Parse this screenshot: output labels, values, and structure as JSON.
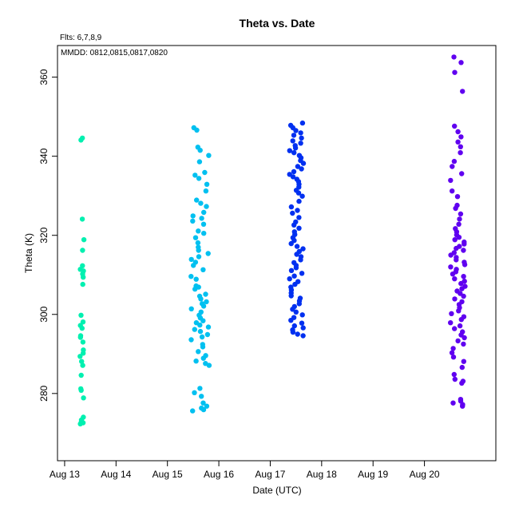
{
  "chart_data": {
    "type": "scatter",
    "title": "Theta  vs. Date",
    "subtitle": "Flts: 6,7,8,9",
    "annotation": "MMDD: 0812,0815,0817,0820",
    "xlabel": "Date (UTC)",
    "ylabel": "Theta (K)",
    "xlim": [
      "Aug 12 20:40",
      "Aug 21 09:20"
    ],
    "ylim": [
      263,
      368
    ],
    "x_ticks": [
      "Aug 13",
      "Aug 14",
      "Aug 15",
      "Aug 16",
      "Aug 17",
      "Aug 18",
      "Aug 19",
      "Aug 20"
    ],
    "y_ticks": [
      280,
      300,
      320,
      340,
      360
    ],
    "grid": false,
    "series": [
      {
        "color": "#00f0b0",
        "x_range": [
          "Aug 13 07:00",
          "Aug 13 09:00"
        ],
        "values": [
          344.6,
          344.1,
          324.1,
          318.9,
          316.2,
          312.3,
          311.4,
          311.0,
          310.2,
          309.4,
          307.6,
          299.8,
          298.1,
          297.2,
          296.5,
          294.6,
          294.2,
          293.0,
          291.0,
          290.2,
          289.4,
          288.1,
          287.1,
          284.6,
          281.2,
          280.8,
          278.9,
          274.0,
          273.3,
          272.9,
          272.6,
          272.3
        ]
      },
      {
        "color": "#00c0f0",
        "x_range": [
          "Aug 15 11:00",
          "Aug 15 19:30"
        ],
        "values": [
          347.2,
          346.6,
          342.3,
          341.5,
          340.2,
          338.6,
          335.9,
          335.2,
          334.4,
          332.9,
          331.2,
          328.9,
          328.1,
          327.3,
          325.8,
          324.9,
          324.3,
          323.6,
          322.8,
          321.1,
          320.5,
          319.4,
          318.1,
          317.0,
          316.2,
          315.4,
          314.6,
          313.9,
          313.2,
          312.4,
          311.3,
          309.6,
          308.9,
          307.2,
          306.9,
          306.4,
          305.1,
          304.6,
          303.9,
          303.2,
          302.7,
          302.1,
          301.4,
          300.6,
          299.8,
          299.1,
          298.4,
          297.9,
          297.3,
          296.8,
          296.2,
          295.7,
          294.9,
          294.3,
          293.6,
          292.4,
          291.8,
          290.6,
          289.6,
          288.9,
          288.2,
          287.6,
          287.1,
          281.3,
          280.2,
          279.3,
          277.6,
          276.8,
          276.3,
          275.9,
          275.6
        ]
      },
      {
        "color": "#0030f0",
        "x_range": [
          "Aug 17 09:00",
          "Aug 17 15:30"
        ],
        "values": [
          348.4,
          347.8,
          347.2,
          346.5,
          345.9,
          345.3,
          344.6,
          343.9,
          343.3,
          342.7,
          342.1,
          341.4,
          340.9,
          340.2,
          339.6,
          338.9,
          338.2,
          337.4,
          336.8,
          336.1,
          335.4,
          334.8,
          334.2,
          333.6,
          332.9,
          332.2,
          331.4,
          330.7,
          329.9,
          328.6,
          327.2,
          326.3,
          325.6,
          324.5,
          323.4,
          322.6,
          321.8,
          320.9,
          320.2,
          319.4,
          318.7,
          317.9,
          317.2,
          316.6,
          315.9,
          315.2,
          314.6,
          313.8,
          313.1,
          312.4,
          311.8,
          311.1,
          310.4,
          309.7,
          309.0,
          308.3,
          307.6,
          306.9,
          306.2,
          305.4,
          304.7,
          304.1,
          303.4,
          302.7,
          302.0,
          301.3,
          300.6,
          299.9,
          299.2,
          298.5,
          297.8,
          297.1,
          296.6,
          296.1,
          295.5,
          295.0,
          294.6
        ]
      },
      {
        "color": "#6000f0",
        "x_range": [
          "Aug 20 12:00",
          "Aug 20 19:00"
        ],
        "values": [
          365.1,
          363.7,
          361.2,
          356.4,
          347.6,
          346.2,
          344.9,
          343.6,
          342.4,
          340.9,
          338.7,
          337.4,
          335.6,
          333.9,
          331.2,
          329.8,
          327.6,
          326.8,
          325.4,
          324.1,
          322.8,
          321.7,
          320.9,
          320.1,
          319.5,
          318.9,
          318.3,
          317.8,
          317.2,
          316.7,
          316.2,
          315.6,
          315.0,
          314.4,
          313.8,
          313.2,
          312.6,
          312.0,
          311.4,
          310.8,
          310.2,
          309.6,
          309.0,
          308.4,
          307.8,
          307.1,
          306.5,
          305.9,
          305.3,
          304.6,
          303.9,
          303.2,
          302.5,
          301.7,
          300.9,
          300.2,
          299.4,
          298.7,
          297.9,
          297.1,
          296.4,
          295.6,
          294.8,
          294.1,
          293.3,
          292.5,
          291.4,
          290.3,
          289.2,
          288.1,
          286.6,
          284.8,
          283.6,
          283.1,
          282.6,
          278.5,
          278.1,
          277.6,
          277.2,
          276.8
        ]
      }
    ]
  }
}
